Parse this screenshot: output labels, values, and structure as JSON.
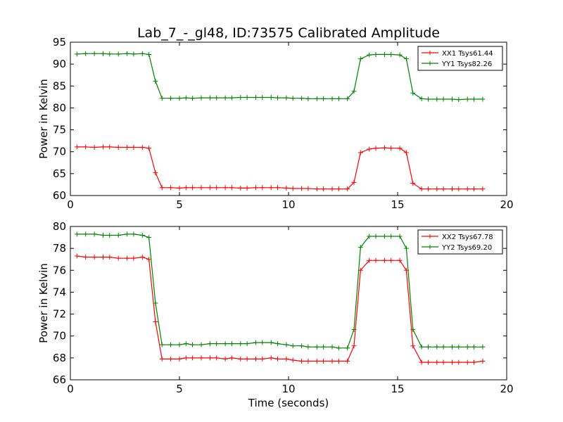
{
  "figure": {
    "title": "Lab_7_-_gl48, ID:73575 Calibrated Amplitude",
    "xlabel": "Time (seconds)"
  },
  "chart_data": [
    {
      "type": "line",
      "title": "Lab_7_-_gl48, ID:73575 Calibrated Amplitude",
      "xlabel": "",
      "ylabel": "Power in Kelvin",
      "xlim": [
        0,
        20
      ],
      "ylim": [
        60,
        95
      ],
      "xticks": [
        0,
        5,
        10,
        15,
        20
      ],
      "yticks": [
        60,
        65,
        70,
        75,
        80,
        85,
        90,
        95
      ],
      "grid": false,
      "legend_position": "top-right",
      "x": [
        0.3,
        0.7,
        1.1,
        1.5,
        1.8,
        2.2,
        2.6,
        2.9,
        3.3,
        3.6,
        3.9,
        4.2,
        4.6,
        5.0,
        5.3,
        5.6,
        6.0,
        6.4,
        6.7,
        7.1,
        7.4,
        7.8,
        8.1,
        8.5,
        8.8,
        9.2,
        9.5,
        9.9,
        10.2,
        10.6,
        10.9,
        11.3,
        11.6,
        12.0,
        12.3,
        12.7,
        13.0,
        13.3,
        13.7,
        14.0,
        14.4,
        14.7,
        15.1,
        15.4,
        15.7,
        16.1,
        16.4,
        16.8,
        17.1,
        17.5,
        17.8,
        18.2,
        18.5,
        18.9
      ],
      "series": [
        {
          "name": "XX1 Tsys61.44",
          "color": "#ff0000",
          "values": [
            71.1,
            71.1,
            71.0,
            71.1,
            71.1,
            71.0,
            71.0,
            71.0,
            71.0,
            70.8,
            65.2,
            61.8,
            61.8,
            61.7,
            61.8,
            61.8,
            61.8,
            61.8,
            61.8,
            61.8,
            61.8,
            61.7,
            61.7,
            61.8,
            61.8,
            61.8,
            61.8,
            61.7,
            61.6,
            61.6,
            61.6,
            61.5,
            61.5,
            61.5,
            61.5,
            61.5,
            63.0,
            69.8,
            70.6,
            70.8,
            70.9,
            70.8,
            70.8,
            69.8,
            62.8,
            61.5,
            61.5,
            61.5,
            61.5,
            61.5,
            61.5,
            61.5,
            61.5,
            61.5
          ]
        },
        {
          "name": "YY1 Tsys82.26",
          "color": "#008000",
          "values": [
            92.3,
            92.4,
            92.4,
            92.4,
            92.3,
            92.3,
            92.4,
            92.3,
            92.4,
            92.2,
            86.1,
            82.2,
            82.2,
            82.2,
            82.3,
            82.2,
            82.3,
            82.3,
            82.3,
            82.3,
            82.3,
            82.4,
            82.4,
            82.4,
            82.4,
            82.4,
            82.3,
            82.3,
            82.2,
            82.2,
            82.1,
            82.1,
            82.1,
            82.1,
            82.1,
            82.1,
            83.8,
            91.2,
            92.1,
            92.2,
            92.2,
            92.2,
            92.1,
            91.2,
            83.4,
            82.1,
            82.0,
            82.0,
            82.0,
            82.0,
            81.9,
            82.0,
            82.0,
            82.0
          ]
        }
      ]
    },
    {
      "type": "line",
      "title": "",
      "xlabel": "Time (seconds)",
      "ylabel": "Power in Kelvin",
      "xlim": [
        0,
        20
      ],
      "ylim": [
        66,
        80
      ],
      "xticks": [
        0,
        5,
        10,
        15,
        20
      ],
      "yticks": [
        66,
        68,
        70,
        72,
        74,
        76,
        78,
        80
      ],
      "grid": false,
      "legend_position": "top-right",
      "x": [
        0.3,
        0.7,
        1.1,
        1.5,
        1.8,
        2.2,
        2.6,
        2.9,
        3.3,
        3.6,
        3.9,
        4.2,
        4.6,
        5.0,
        5.3,
        5.6,
        6.0,
        6.4,
        6.7,
        7.1,
        7.4,
        7.8,
        8.1,
        8.5,
        8.8,
        9.2,
        9.5,
        9.9,
        10.2,
        10.6,
        10.9,
        11.3,
        11.6,
        12.0,
        12.3,
        12.7,
        13.0,
        13.3,
        13.7,
        14.0,
        14.4,
        14.7,
        15.1,
        15.4,
        15.7,
        16.1,
        16.4,
        16.8,
        17.1,
        17.5,
        17.8,
        18.2,
        18.5,
        18.9
      ],
      "series": [
        {
          "name": "XX2 Tsys67.78",
          "color": "#ff0000",
          "values": [
            77.3,
            77.2,
            77.2,
            77.2,
            77.2,
            77.1,
            77.1,
            77.1,
            77.2,
            77.0,
            71.3,
            67.9,
            67.9,
            67.9,
            68.0,
            68.0,
            68.0,
            68.0,
            68.0,
            67.9,
            68.0,
            67.9,
            67.9,
            67.9,
            67.9,
            68.0,
            67.9,
            67.9,
            67.8,
            67.7,
            67.7,
            67.7,
            67.7,
            67.7,
            67.7,
            67.7,
            69.1,
            76.0,
            76.9,
            76.9,
            76.9,
            76.9,
            76.9,
            76.0,
            69.1,
            67.6,
            67.6,
            67.6,
            67.6,
            67.6,
            67.6,
            67.6,
            67.6,
            67.7
          ]
        },
        {
          "name": "YY2 Tsys69.20",
          "color": "#008000",
          "values": [
            79.3,
            79.3,
            79.3,
            79.2,
            79.2,
            79.2,
            79.3,
            79.3,
            79.2,
            79.0,
            73.0,
            69.2,
            69.2,
            69.2,
            69.3,
            69.2,
            69.2,
            69.3,
            69.3,
            69.3,
            69.3,
            69.3,
            69.3,
            69.4,
            69.4,
            69.4,
            69.3,
            69.2,
            69.1,
            69.1,
            69.0,
            69.0,
            69.0,
            69.0,
            68.9,
            68.9,
            70.6,
            78.1,
            79.1,
            79.1,
            79.1,
            79.1,
            79.1,
            78.0,
            70.6,
            69.0,
            69.0,
            69.0,
            69.0,
            69.0,
            69.0,
            69.0,
            69.0,
            69.0
          ]
        }
      ]
    }
  ]
}
